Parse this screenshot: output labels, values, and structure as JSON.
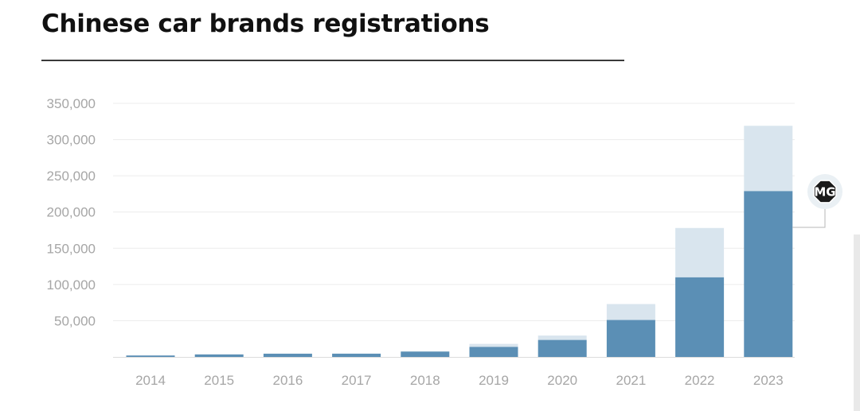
{
  "title": "Chinese car brands registrations",
  "chart_data": {
    "type": "bar",
    "stacked": true,
    "title": "Chinese car brands registrations",
    "xlabel": "",
    "ylabel": "",
    "ylim": [
      0,
      350000
    ],
    "yticks": [
      50000,
      100000,
      150000,
      200000,
      250000,
      300000,
      350000
    ],
    "ytick_labels": [
      "50,000",
      "100,000",
      "150,000",
      "200,000",
      "250,000",
      "300,000",
      "350,000"
    ],
    "grid": true,
    "categories": [
      "2014",
      "2015",
      "2016",
      "2017",
      "2018",
      "2019",
      "2020",
      "2021",
      "2022",
      "2023"
    ],
    "series": [
      {
        "color": "#5b8fb5",
        "values": [
          2000,
          3500,
          4500,
          4500,
          7500,
          14000,
          23500,
          51000,
          110000,
          229000
        ]
      },
      {
        "color": "#d9e5ee",
        "values": [
          0,
          0,
          0,
          500,
          500,
          4000,
          6000,
          22000,
          68000,
          90000
        ]
      }
    ],
    "annotation": {
      "category": "2023",
      "series_index": 0,
      "logo": "mg-logo",
      "logo_text": "MG"
    }
  }
}
